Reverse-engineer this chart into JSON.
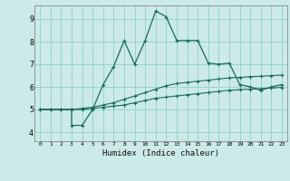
{
  "xlabel": "Humidex (Indice chaleur)",
  "x_ticks": [
    0,
    1,
    2,
    3,
    4,
    5,
    6,
    7,
    8,
    9,
    10,
    11,
    12,
    13,
    14,
    15,
    16,
    17,
    18,
    19,
    20,
    21,
    22,
    23
  ],
  "y_ticks": [
    4,
    5,
    6,
    7,
    8,
    9
  ],
  "ylim": [
    3.6,
    9.6
  ],
  "xlim": [
    -0.5,
    23.5
  ],
  "bg_color": "#cceae7",
  "grid_color": "#99d5cf",
  "line_color": "#1a6b5a",
  "line1_x": [
    0,
    1,
    2,
    3,
    4,
    5,
    6,
    7,
    8,
    9,
    10,
    11,
    12,
    13,
    14,
    15,
    16,
    17,
    18,
    19,
    20,
    21,
    22,
    23
  ],
  "line1_y": [
    5.0,
    5.0,
    5.0,
    5.0,
    5.0,
    5.05,
    5.1,
    5.15,
    5.2,
    5.3,
    5.4,
    5.5,
    5.55,
    5.6,
    5.65,
    5.7,
    5.75,
    5.8,
    5.85,
    5.88,
    5.9,
    5.92,
    5.95,
    5.98
  ],
  "line2_x": [
    0,
    1,
    2,
    3,
    4,
    5,
    6,
    7,
    8,
    9,
    10,
    11,
    12,
    13,
    14,
    15,
    16,
    17,
    18,
    19,
    20,
    21,
    22,
    23
  ],
  "line2_y": [
    5.0,
    5.0,
    5.0,
    5.0,
    5.05,
    5.1,
    5.2,
    5.3,
    5.45,
    5.6,
    5.75,
    5.9,
    6.05,
    6.15,
    6.2,
    6.25,
    6.3,
    6.35,
    6.4,
    6.42,
    6.45,
    6.47,
    6.5,
    6.52
  ],
  "line3_x": [
    0,
    1,
    2,
    3,
    3,
    4,
    5,
    6,
    7,
    8,
    9,
    10,
    11,
    12,
    13,
    14,
    15,
    16,
    17,
    18,
    19,
    20,
    21,
    22,
    23
  ],
  "line3_y": [
    5.0,
    5.0,
    5.0,
    5.0,
    4.3,
    4.3,
    5.0,
    6.1,
    6.9,
    8.05,
    7.0,
    8.05,
    9.35,
    9.1,
    8.05,
    8.05,
    8.05,
    7.05,
    7.0,
    7.05,
    6.1,
    6.0,
    5.85,
    6.0,
    6.1
  ]
}
